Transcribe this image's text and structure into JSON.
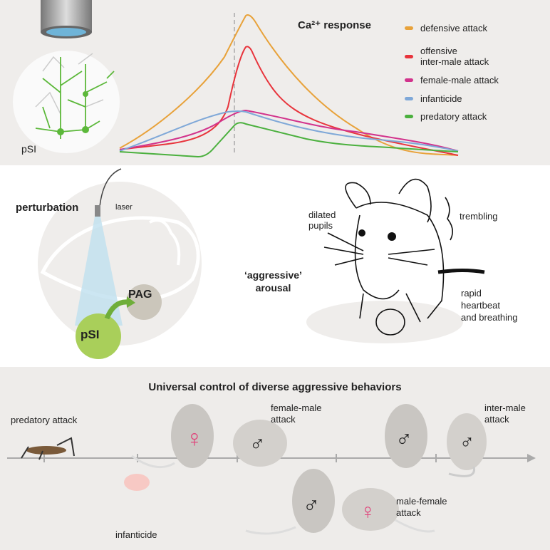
{
  "top": {
    "title": "Ca²⁺ response",
    "region_label": "pSI",
    "legend": [
      {
        "label": "defensive attack",
        "color": "#e8a23a"
      },
      {
        "label": "offensive\ninter-male attack",
        "label_line1": "offensive",
        "label_line2": "inter-male attack",
        "color": "#e8343c"
      },
      {
        "label": "female-male attack",
        "color": "#d2338c"
      },
      {
        "label": "infanticide",
        "color": "#7fa8d8"
      },
      {
        "label": "predatory attack",
        "color": "#4bb03e"
      }
    ]
  },
  "middle": {
    "perturbation": "perturbation",
    "laser": "laser",
    "psi": "pSI",
    "pag": "PAG",
    "arousal_line1": "‘aggressive’",
    "arousal_line2": "arousal",
    "dilated_line1": "dilated",
    "dilated_line2": "pupils",
    "trembling": "trembling",
    "rapid_line1": "rapid",
    "rapid_line2": "heartbeat",
    "rapid_line3": "and breathing"
  },
  "bottom": {
    "title": "Universal control of diverse aggressive behaviors",
    "predatory": "predatory attack",
    "infanticide": "infanticide",
    "female_male_line1": "female-male",
    "female_male_line2": "attack",
    "inter_male_line1": "inter-male",
    "inter_male_line2": "attack",
    "male_female_line1": "male-female",
    "male_female_line2": "attack"
  },
  "colors": {
    "female": "#e0457b",
    "male": "#222222",
    "neuron": "#5cb83a",
    "psi": "#a9cf5a",
    "pag": "#cbc6bb"
  }
}
